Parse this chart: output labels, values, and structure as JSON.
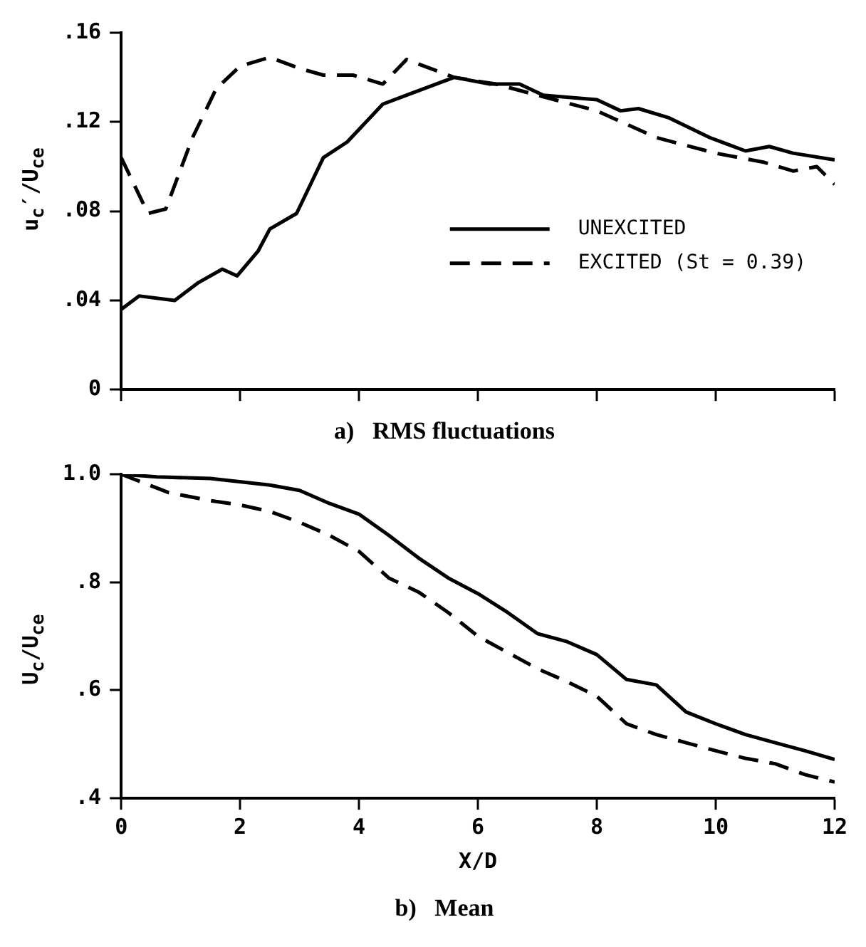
{
  "chart_data": [
    {
      "type": "line",
      "title": "a)   RMS fluctuations",
      "ylabel": "u$_{c}$′/U$_{ce}$",
      "xlim": [
        0,
        12
      ],
      "xticks": [
        {
          "value": 0,
          "label": null
        },
        {
          "value": 2,
          "label": null
        },
        {
          "value": 4,
          "label": null
        },
        {
          "value": 6,
          "label": null
        },
        {
          "value": 8,
          "label": null
        },
        {
          "value": 10,
          "label": null
        },
        {
          "value": 12,
          "label": null
        }
      ],
      "ylim": [
        0,
        0.16
      ],
      "yticks": [
        0,
        {
          "value": 0.04,
          "label": ".04"
        },
        {
          "value": 0.08,
          "label": ".08"
        },
        {
          "value": 0.12,
          "label": ".12"
        },
        {
          "value": 0.16,
          "label": ".16"
        }
      ],
      "tick_labels": "y",
      "grid": false,
      "legend": "right",
      "marker": "none",
      "series": [
        {
          "name": "UNEXCITED",
          "color": "#000000",
          "line_style": "solid",
          "x": [
            0,
            0.3,
            0.9,
            1.3,
            1.7,
            1.95,
            2.3,
            2.5,
            2.95,
            3.4,
            3.8,
            4.4,
            4.8,
            5.6,
            6.2,
            6.7,
            7.1,
            8.0,
            8.4,
            8.7,
            9.2,
            9.9,
            10.5,
            10.9,
            11.3,
            12
          ],
          "values": [
            0.036,
            0.042,
            0.04,
            0.048,
            0.054,
            0.051,
            0.062,
            0.072,
            0.079,
            0.104,
            0.111,
            0.128,
            0.132,
            0.14,
            0.137,
            0.137,
            0.132,
            0.13,
            0.125,
            0.126,
            0.122,
            0.113,
            0.107,
            0.109,
            0.106,
            0.103
          ]
        },
        {
          "name": "EXCITED (St = 0.39)",
          "color": "#000000",
          "line_style": "dashed",
          "x": [
            0,
            0.45,
            0.75,
            1.2,
            1.6,
            2.0,
            2.5,
            3.0,
            3.4,
            3.9,
            4.4,
            4.8,
            5.6,
            6.3,
            7.0,
            8.0,
            9.0,
            10.0,
            10.8,
            11.3,
            11.7,
            12
          ],
          "values": [
            0.104,
            0.079,
            0.081,
            0.113,
            0.135,
            0.145,
            0.149,
            0.144,
            0.141,
            0.141,
            0.137,
            0.148,
            0.14,
            0.137,
            0.132,
            0.125,
            0.113,
            0.106,
            0.102,
            0.098,
            0.1,
            0.092
          ]
        }
      ]
    },
    {
      "type": "line",
      "title": "b)   Mean",
      "xlabel": "X/D",
      "ylabel": "U$_{c}$/U$_{ce}$",
      "xlim": [
        0,
        12
      ],
      "xticks": [
        0,
        2,
        4,
        6,
        8,
        10,
        12
      ],
      "ylim": [
        0.4,
        1.0
      ],
      "yticks": [
        {
          "value": 0.4,
          "label": ".4"
        },
        {
          "value": 0.6,
          "label": ".6"
        },
        {
          "value": 0.8,
          "label": ".8"
        },
        {
          "value": 1.0,
          "label": "1.0"
        }
      ],
      "grid": false,
      "marker": "none",
      "series": [
        {
          "color": "#000000",
          "line_style": "solid",
          "x": [
            0,
            0.6,
            1.5,
            2.5,
            3.0,
            3.5,
            4.0,
            4.5,
            5.0,
            5.5,
            6.0,
            6.5,
            7.0,
            7.5,
            8.0,
            8.5,
            9.0,
            9.5,
            10.0,
            10.5,
            11.0,
            11.5,
            12
          ],
          "values": [
            1.0,
            0.995,
            0.992,
            0.98,
            0.97,
            0.946,
            0.926,
            0.887,
            0.845,
            0.808,
            0.779,
            0.744,
            0.705,
            0.69,
            0.666,
            0.62,
            0.61,
            0.56,
            0.538,
            0.518,
            0.503,
            0.488,
            0.472
          ]
        },
        {
          "color": "#000000",
          "line_style": "dashed",
          "x": [
            0,
            0.8,
            1.5,
            2.0,
            2.5,
            3.0,
            3.5,
            4.0,
            4.5,
            5.0,
            5.5,
            6.0,
            6.5,
            7.0,
            7.5,
            8.0,
            8.5,
            9.0,
            9.5,
            10.0,
            10.5,
            11.0,
            11.5,
            12
          ],
          "values": [
            1.0,
            0.966,
            0.951,
            0.943,
            0.931,
            0.911,
            0.887,
            0.857,
            0.808,
            0.782,
            0.744,
            0.7,
            0.67,
            0.64,
            0.616,
            0.589,
            0.538,
            0.518,
            0.503,
            0.488,
            0.474,
            0.464,
            0.444,
            0.43
          ]
        }
      ]
    }
  ]
}
